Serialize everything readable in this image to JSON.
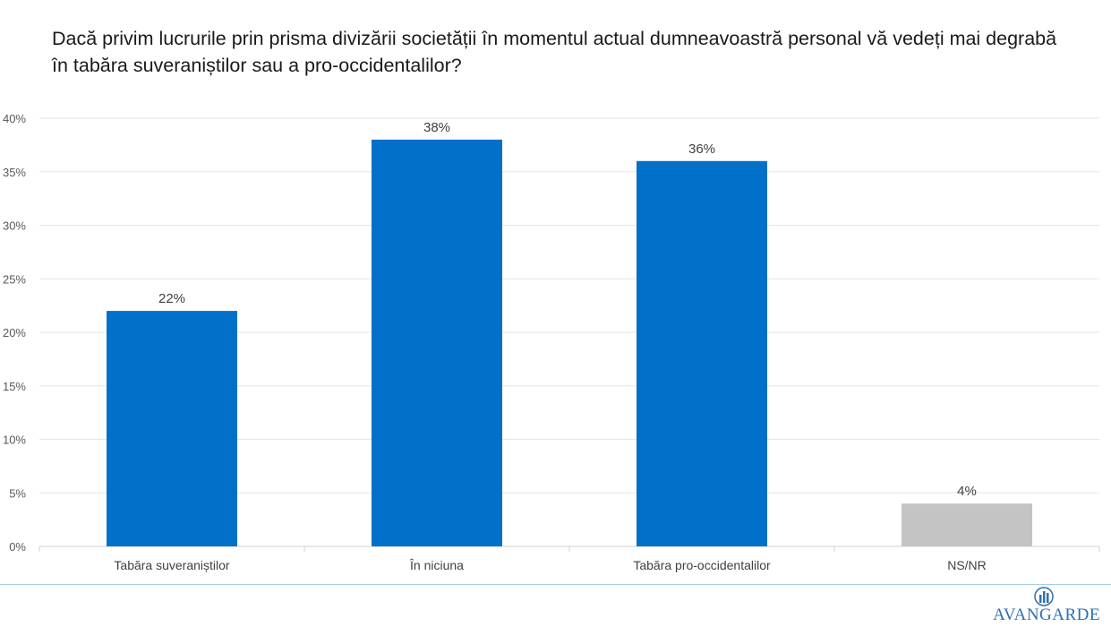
{
  "title": "Dacă privim lucrurile prin prisma divizării societății în momentul actual dumneavoastră personal vă vedeți mai degrabă în tabăra suveraniștilor sau a pro-occidentalilor?",
  "logo": {
    "text": "AVANGARDE",
    "icon": "avangarde-logo-icon"
  },
  "chart_data": {
    "type": "bar",
    "title": "Dacă privim lucrurile prin prisma divizării societății în momentul actual dumneavoastră personal vă vedeți mai degrabă în tabăra suveraniștilor sau a pro-occidentalilor?",
    "categories": [
      "Tabăra suveraniștilor",
      "În niciuna",
      "Tabăra pro-occidentalilor",
      "NS/NR"
    ],
    "values": [
      22,
      38,
      36,
      4
    ],
    "data_labels": [
      "22%",
      "38%",
      "36%",
      "4%"
    ],
    "colors": [
      "#0070c8",
      "#0070c8",
      "#0070c8",
      "#c4c4c4"
    ],
    "yticks": [
      "0%",
      "5%",
      "10%",
      "15%",
      "20%",
      "25%",
      "30%",
      "35%",
      "40%"
    ],
    "ylim": [
      0,
      40
    ],
    "xlabel": "",
    "ylabel": "",
    "grid": true,
    "legend": "none"
  }
}
